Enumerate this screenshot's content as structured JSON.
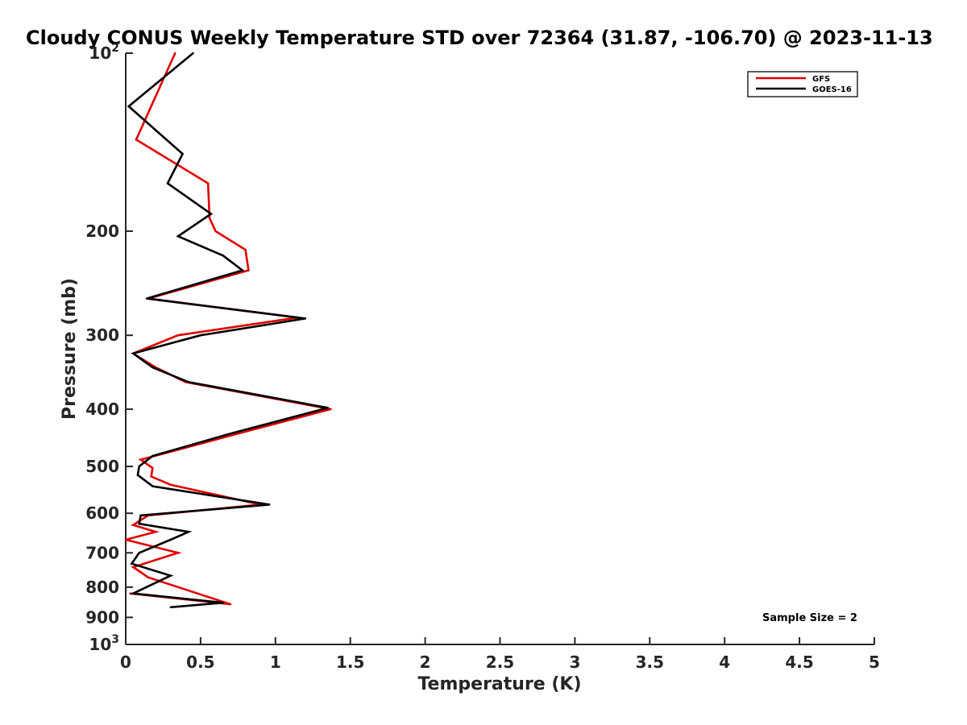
{
  "chart_data": {
    "type": "line",
    "title": "Cloudy CONUS Weekly Temperature STD over 72364 (31.87, -106.70) @ 2023-11-13",
    "xlabel": "Temperature (K)",
    "ylabel": "Pressure (mb)",
    "xlim": [
      0,
      5
    ],
    "ylim": [
      100,
      1000
    ],
    "y_scale": "log",
    "y_reversed": true,
    "grid": false,
    "legend_position": "top-right",
    "x_ticks": [
      {
        "value": 0,
        "label": "0"
      },
      {
        "value": 0.5,
        "label": "0.5"
      },
      {
        "value": 1,
        "label": "1"
      },
      {
        "value": 1.5,
        "label": "1.5"
      },
      {
        "value": 2,
        "label": "2"
      },
      {
        "value": 2.5,
        "label": "2.5"
      },
      {
        "value": 3,
        "label": "3"
      },
      {
        "value": 3.5,
        "label": "3.5"
      },
      {
        "value": 4,
        "label": "4"
      },
      {
        "value": 4.5,
        "label": "4.5"
      },
      {
        "value": 5,
        "label": "5"
      }
    ],
    "y_ticks": [
      {
        "value": 100,
        "label": "10",
        "sup": "2"
      },
      {
        "value": 200,
        "label": "200"
      },
      {
        "value": 300,
        "label": "300"
      },
      {
        "value": 400,
        "label": "400"
      },
      {
        "value": 500,
        "label": "500"
      },
      {
        "value": 600,
        "label": "600"
      },
      {
        "value": 700,
        "label": "700"
      },
      {
        "value": 800,
        "label": "800"
      },
      {
        "value": 900,
        "label": "900"
      },
      {
        "value": 1000,
        "label": "10",
        "sup": "3"
      }
    ],
    "series": [
      {
        "name": "GFS",
        "color": "#e00000",
        "x": [
          0.33,
          0.07,
          0.55,
          0.56,
          0.6,
          0.8,
          0.82,
          0.15,
          1.15,
          0.35,
          0.05,
          0.2,
          0.4,
          1.37,
          0.75,
          0.1,
          0.18,
          0.17,
          0.3,
          0.9,
          0.15,
          0.05,
          0.2,
          0.0,
          0.35,
          0.05,
          0.15,
          0.7,
          0.03
        ],
        "y": [
          100,
          140,
          166,
          190,
          200,
          215,
          233,
          260,
          280,
          300,
          322,
          340,
          360,
          400,
          440,
          487,
          503,
          520,
          537,
          580,
          605,
          628,
          645,
          665,
          700,
          740,
          770,
          855,
          820
        ]
      },
      {
        "name": "GOES-16",
        "color": "#000000",
        "x": [
          0.45,
          0.02,
          0.38,
          0.28,
          0.57,
          0.35,
          0.65,
          0.78,
          0.14,
          1.2,
          0.5,
          0.05,
          0.18,
          0.42,
          1.35,
          0.7,
          0.18,
          0.09,
          0.08,
          0.18,
          0.96,
          0.1,
          0.09,
          0.42,
          0.3,
          0.09,
          0.04,
          0.3,
          0.05,
          0.65,
          0.3
        ],
        "y": [
          100,
          123,
          148,
          166,
          187,
          204,
          220,
          233,
          260,
          281,
          300,
          322,
          340,
          360,
          398,
          440,
          480,
          500,
          517,
          540,
          580,
          605,
          625,
          645,
          665,
          700,
          730,
          765,
          820,
          850,
          865
        ]
      }
    ],
    "annotation": "Sample Size = 2"
  }
}
